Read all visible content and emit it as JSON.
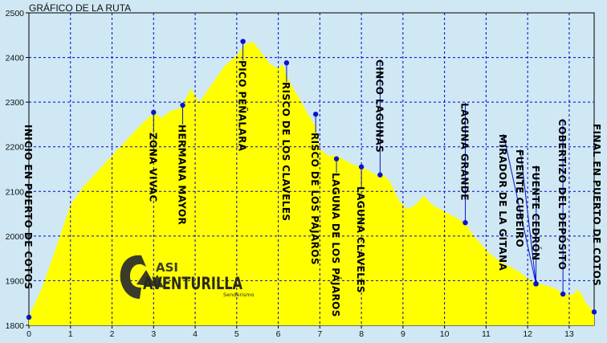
{
  "chart_data": {
    "type": "area",
    "title": "GRÁFICO DE LA RUTA",
    "xlabel": "",
    "ylabel": "",
    "xlim": [
      0,
      13.6
    ],
    "ylim": [
      1800,
      2500
    ],
    "x_ticks": [
      "0",
      "1",
      "2",
      "3",
      "4",
      "5",
      "6",
      "7",
      "8",
      "9",
      "10",
      "11",
      "12",
      "13"
    ],
    "y_ticks": [
      "1800",
      "1900",
      "2000",
      "2100",
      "2200",
      "2300",
      "2400",
      "2500"
    ],
    "grid": true,
    "colors": {
      "fill": "#ffff00",
      "grid": "#0000c8",
      "marker": "#0a14c8",
      "background": "#cfe8f4"
    },
    "profile": {
      "x": [
        0,
        0.3,
        0.6,
        1.0,
        1.3,
        1.7,
        2.0,
        2.4,
        2.7,
        3.0,
        3.2,
        3.4,
        3.6,
        3.7,
        3.9,
        4.1,
        4.4,
        4.7,
        5.0,
        5.2,
        5.4,
        5.6,
        5.8,
        6.0,
        6.1,
        6.3,
        6.5,
        6.7,
        6.9,
        7.0,
        7.2,
        7.4,
        7.6,
        7.8,
        8.0,
        8.2,
        8.4,
        8.5,
        8.7,
        8.9,
        9.1,
        9.3,
        9.5,
        9.7,
        9.9,
        10.1,
        10.3,
        10.5,
        10.7,
        10.9,
        11.1,
        11.3,
        11.5,
        11.8,
        12.0,
        12.2,
        12.4,
        12.6,
        12.8,
        12.9,
        13.0,
        13.1,
        13.2,
        13.3,
        13.4,
        13.5,
        13.6
      ],
      "y": [
        1820,
        1880,
        1960,
        2070,
        2110,
        2150,
        2180,
        2220,
        2250,
        2275,
        2265,
        2280,
        2285,
        2295,
        2330,
        2300,
        2340,
        2380,
        2405,
        2430,
        2435,
        2410,
        2385,
        2375,
        2385,
        2340,
        2310,
        2275,
        2245,
        2195,
        2180,
        2180,
        2170,
        2160,
        2155,
        2145,
        2135,
        2140,
        2120,
        2080,
        2060,
        2070,
        2090,
        2070,
        2060,
        2050,
        2040,
        2030,
        2000,
        1980,
        1960,
        1945,
        1935,
        1920,
        1905,
        1895,
        1890,
        1885,
        1875,
        1870,
        1868,
        1870,
        1880,
        1870,
        1850,
        1840,
        1830
      ]
    },
    "waypoints": [
      {
        "label": "INICIO EN PUERTO DE COTOS",
        "x": 0.0,
        "y": 1818
      },
      {
        "label": "ZONA VIVAC",
        "x": 3.0,
        "y": 2277
      },
      {
        "label": "HERMANA MAYOR",
        "x": 3.7,
        "y": 2293
      },
      {
        "label": "PICO PEÑALARA",
        "x": 5.15,
        "y": 2436
      },
      {
        "label": "RISCO DE LOS CLAVELES",
        "x": 6.2,
        "y": 2388
      },
      {
        "label": "RISCO DE LOS PÁJAROS",
        "x": 6.9,
        "y": 2273
      },
      {
        "label": "LAGUNA DE LOS PÁJAROS",
        "x": 7.4,
        "y": 2173
      },
      {
        "label": "LAGUNA CLAVELES",
        "x": 8.0,
        "y": 2155
      },
      {
        "label": "CINCO LAGUNAS",
        "x": 8.45,
        "y": 2137
      },
      {
        "label": "LAGUNA GRANDE",
        "x": 10.5,
        "y": 2030
      },
      {
        "label": "MIRADOR DE LA GITANA",
        "x": 12.2,
        "y": 1893
      },
      {
        "label": "FUENTE CUBEIRO",
        "x": 12.2,
        "y": 1893
      },
      {
        "label": "FUENTE CEDRÓN",
        "x": 12.2,
        "y": 1893
      },
      {
        "label": "COBERTIZO DEL DEPÓSITO",
        "x": 12.85,
        "y": 1870
      },
      {
        "label": "FINAL EN PUERTO DE COTOS",
        "x": 13.6,
        "y": 1830
      }
    ]
  },
  "logo": {
    "line1": "ASI",
    "line2": "AVENTURILLA",
    "sub": "Senderismo"
  }
}
